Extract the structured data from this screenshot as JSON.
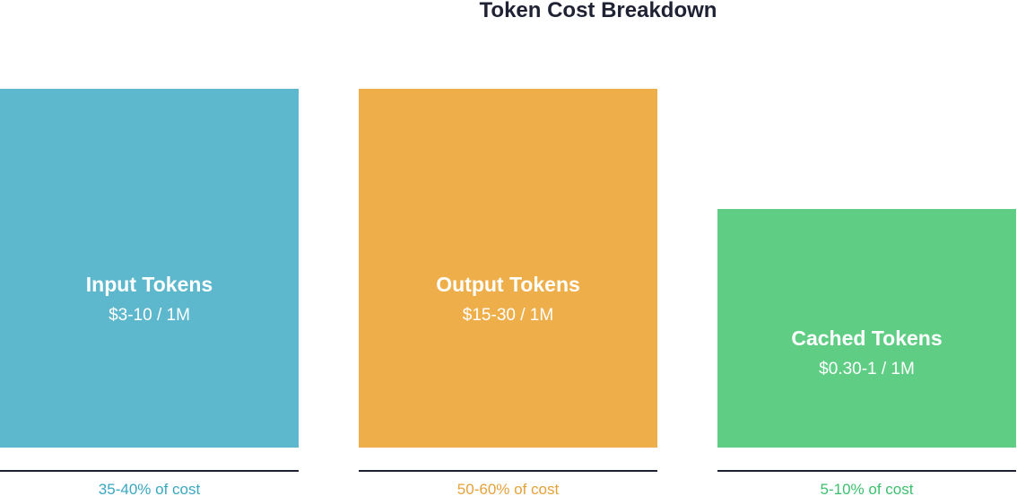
{
  "title": "Token Cost Breakdown",
  "cards": [
    {
      "label": "Input Tokens",
      "price": "$3-10 / 1M",
      "share": "35-40% of cost"
    },
    {
      "label": "Output Tokens",
      "price": "$15-30 / 1M",
      "share": "50-60% of cost"
    },
    {
      "label": "Cached Tokens",
      "price": "$0.30-1 / 1M",
      "share": "5-10% of cost"
    }
  ]
}
